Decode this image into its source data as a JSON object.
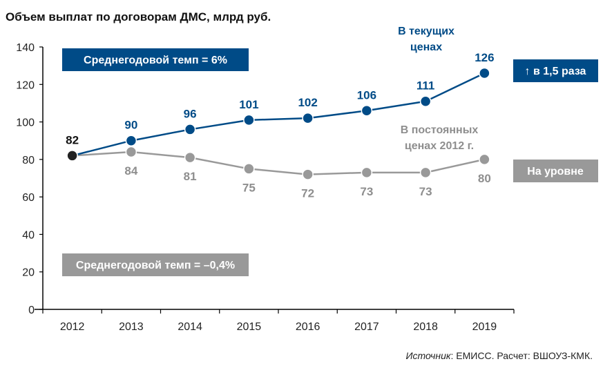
{
  "colors": {
    "current": "#004b87",
    "constant": "#999999",
    "first_point": "#222222",
    "axis": "#000000"
  },
  "chart_data": {
    "type": "line",
    "title": "Объем выплат по договорам ДМС, млрд руб.",
    "categories": [
      "2012",
      "2013",
      "2014",
      "2015",
      "2016",
      "2017",
      "2018",
      "2019"
    ],
    "ylim": [
      0,
      140
    ],
    "yticks": [
      0,
      20,
      40,
      60,
      80,
      100,
      120,
      140
    ],
    "series": [
      {
        "name": "В текущих ценах",
        "name_lines": [
          "В текущих",
          "ценах"
        ],
        "values": [
          82,
          90,
          96,
          101,
          102,
          106,
          111,
          126
        ],
        "labels": [
          "82",
          "90",
          "96",
          "101",
          "102",
          "106",
          "111",
          "126"
        ]
      },
      {
        "name": "В постоянных ценах 2012 г.",
        "name_lines": [
          "В постоянных",
          "ценах 2012 г."
        ],
        "values": [
          82,
          84,
          81,
          75,
          72,
          73,
          73,
          80
        ],
        "labels": [
          "",
          "84",
          "81",
          "75",
          "72",
          "73",
          "73",
          "80"
        ]
      }
    ],
    "annotations": {
      "rate_current": "Среднегодовой темп = 6%",
      "rate_constant": "Среднегодовой темп = –0,4%",
      "change_current": "↑ в 1,5 раза",
      "change_constant": "На уровне"
    }
  },
  "source": {
    "label": "Источник",
    "text": ": ЕМИСС. Расчет: ВШОУЗ-КМК."
  }
}
